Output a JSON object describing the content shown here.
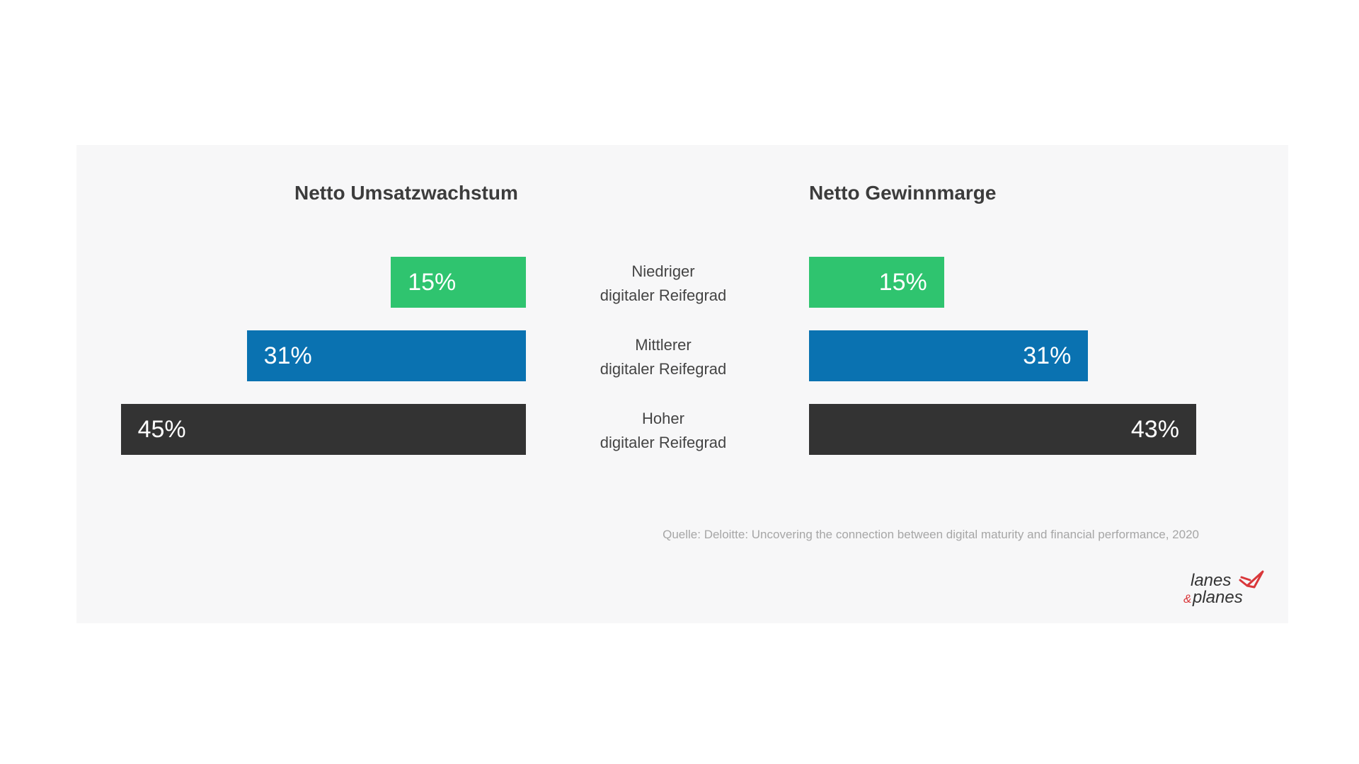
{
  "chart_data": [
    {
      "type": "bar",
      "orientation": "horizontal",
      "direction": "right-to-left",
      "title": "Netto Umsatzwachstum",
      "categories": [
        "Niedriger digitaler Reifegrad",
        "Mittlerer digitaler Reifegrad",
        "Hoher digitaler Reifegrad"
      ],
      "values": [
        15,
        31,
        45
      ],
      "value_labels": [
        "15%",
        "31%",
        "45%"
      ],
      "colors": [
        "#2fc46f",
        "#0a72b1",
        "#333333"
      ],
      "xlim": [
        0,
        45
      ]
    },
    {
      "type": "bar",
      "orientation": "horizontal",
      "direction": "left-to-right",
      "title": "Netto Gewinnmarge",
      "categories": [
        "Niedriger digitaler Reifegrad",
        "Mittlerer digitaler Reifegrad",
        "Hoher digitaler Reifegrad"
      ],
      "values": [
        15,
        31,
        43
      ],
      "value_labels": [
        "15%",
        "31%",
        "43%"
      ],
      "colors": [
        "#2fc46f",
        "#0a72b1",
        "#333333"
      ],
      "xlim": [
        0,
        45
      ]
    }
  ],
  "category_labels": [
    {
      "line1": "Niedriger",
      "line2": "digitaler Reifegrad"
    },
    {
      "line1": "Mittlerer",
      "line2": "digitaler Reifegrad"
    },
    {
      "line1": "Hoher",
      "line2": "digitaler Reifegrad"
    }
  ],
  "source": "Quelle: Deloitte: Uncovering the connection between digital maturity and financial performance, 2020",
  "logo": {
    "line1": "lanes",
    "amp": "&",
    "line2": "planes",
    "icon": "paper-plane-icon",
    "accent": "#d9373a",
    "text_color": "#333333"
  }
}
